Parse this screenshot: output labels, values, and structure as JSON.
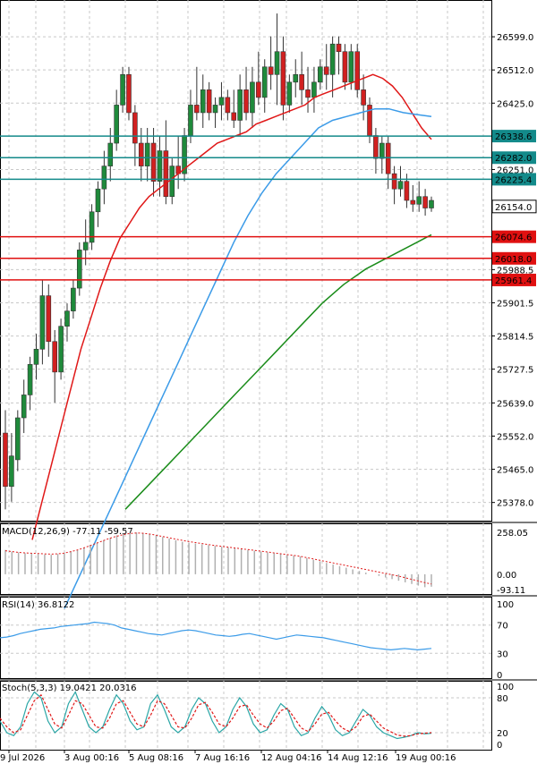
{
  "chart_data": {
    "type": "candlestick",
    "main": {
      "ylim": [
        25335,
        26686
      ],
      "y_ticks": [
        "26599.0",
        "26512.0",
        "26425.0",
        "26251.0",
        "25988.5",
        "25901.5",
        "25814.5",
        "25727.5",
        "25639.0",
        "25552.0",
        "25465.0",
        "25378.0"
      ],
      "y_tick_values": [
        26599.0,
        26512.0,
        26425.0,
        26251.0,
        25988.5,
        25901.5,
        25814.5,
        25727.5,
        25639.0,
        25552.0,
        25465.0,
        25378.0
      ],
      "hlines": [
        {
          "value": 26338.6,
          "label": "26338.6",
          "color": "#138a8a"
        },
        {
          "value": 26282.0,
          "label": "26282.0",
          "color": "#138a8a"
        },
        {
          "value": 26225.4,
          "label": "26225.4",
          "color": "#138a8a"
        },
        {
          "value": 26074.6,
          "label": "26074.6",
          "color": "#e01010"
        },
        {
          "value": 26018.0,
          "label": "26018.0",
          "color": "#e01010"
        },
        {
          "value": 25961.4,
          "label": "25961.4",
          "color": "#e01010"
        }
      ],
      "current_price": {
        "value": 26154.0,
        "label": "26154.0"
      },
      "candles": [
        [
          25560,
          25620,
          25360,
          25420
        ],
        [
          25420,
          25560,
          25380,
          25500
        ],
        [
          25490,
          25620,
          25460,
          25600
        ],
        [
          25600,
          25700,
          25560,
          25660
        ],
        [
          25660,
          25760,
          25620,
          25740
        ],
        [
          25740,
          25820,
          25700,
          25780
        ],
        [
          25780,
          25960,
          25740,
          25920
        ],
        [
          25920,
          25950,
          25760,
          25800
        ],
        [
          25800,
          25830,
          25640,
          25720
        ],
        [
          25720,
          25860,
          25700,
          25840
        ],
        [
          25840,
          25900,
          25800,
          25880
        ],
        [
          25880,
          25960,
          25860,
          25940
        ],
        [
          25940,
          26060,
          25920,
          26040
        ],
        [
          26040,
          26120,
          26000,
          26060
        ],
        [
          26060,
          26160,
          26040,
          26140
        ],
        [
          26140,
          26220,
          26100,
          26200
        ],
        [
          26200,
          26300,
          26160,
          26260
        ],
        [
          26260,
          26360,
          26220,
          26320
        ],
        [
          26320,
          26460,
          26300,
          26420
        ],
        [
          26420,
          26520,
          26400,
          26500
        ],
        [
          26500,
          26520,
          26380,
          26400
        ],
        [
          26400,
          26420,
          26260,
          26320
        ],
        [
          26320,
          26360,
          26220,
          26260
        ],
        [
          26260,
          26360,
          26220,
          26320
        ],
        [
          26320,
          26360,
          26180,
          26220
        ],
        [
          26220,
          26340,
          26180,
          26300
        ],
        [
          26300,
          26380,
          26160,
          26180
        ],
        [
          26180,
          26280,
          26160,
          26260
        ],
        [
          26260,
          26340,
          26200,
          26240
        ],
        [
          26240,
          26360,
          26220,
          26340
        ],
        [
          26340,
          26460,
          26320,
          26420
        ],
        [
          26420,
          26520,
          26380,
          26400
        ],
        [
          26400,
          26500,
          26360,
          26460
        ],
        [
          26460,
          26480,
          26380,
          26400
        ],
        [
          26400,
          26440,
          26360,
          26420
        ],
        [
          26420,
          26480,
          26380,
          26440
        ],
        [
          26440,
          26460,
          26380,
          26400
        ],
        [
          26400,
          26460,
          26360,
          26380
        ],
        [
          26380,
          26500,
          26340,
          26460
        ],
        [
          26460,
          26520,
          26380,
          26400
        ],
        [
          26400,
          26520,
          26360,
          26480
        ],
        [
          26480,
          26560,
          26420,
          26440
        ],
        [
          26440,
          26540,
          26400,
          26520
        ],
        [
          26520,
          26600,
          26460,
          26500
        ],
        [
          26500,
          26660,
          26420,
          26560
        ],
        [
          26560,
          26600,
          26380,
          26420
        ],
        [
          26420,
          26500,
          26400,
          26480
        ],
        [
          26480,
          26540,
          26440,
          26500
        ],
        [
          26500,
          26560,
          26420,
          26460
        ],
        [
          26460,
          26520,
          26400,
          26440
        ],
        [
          26440,
          26520,
          26400,
          26480
        ],
        [
          26480,
          26540,
          26460,
          26520
        ],
        [
          26520,
          26580,
          26460,
          26500
        ],
        [
          26500,
          26600,
          26440,
          26580
        ],
        [
          26580,
          26600,
          26500,
          26560
        ],
        [
          26560,
          26580,
          26460,
          26480
        ],
        [
          26480,
          26580,
          26460,
          26560
        ],
        [
          26560,
          26580,
          26440,
          26460
        ],
        [
          26460,
          26500,
          26380,
          26420
        ],
        [
          26420,
          26440,
          26320,
          26340
        ],
        [
          26340,
          26360,
          26240,
          26280
        ],
        [
          26280,
          26340,
          26240,
          26320
        ],
        [
          26320,
          26340,
          26200,
          26240
        ],
        [
          26240,
          26260,
          26160,
          26200
        ],
        [
          26200,
          26260,
          26180,
          26220
        ],
        [
          26220,
          26240,
          26150,
          26170
        ],
        [
          26170,
          26210,
          26140,
          26160
        ],
        [
          26160,
          26220,
          26140,
          26180
        ],
        [
          26180,
          26200,
          26130,
          26150
        ],
        [
          26150,
          26180,
          26140,
          26170
        ]
      ],
      "ma_red": [
        25280,
        25380,
        25480,
        25580,
        25680,
        25780,
        25860,
        25940,
        26010,
        26070,
        26110,
        26150,
        26180,
        26200,
        26220,
        26240,
        26260,
        26280,
        26300,
        26320,
        26330,
        26340,
        26350,
        26370,
        26380,
        26390,
        26400,
        26410,
        26420,
        26440,
        26450,
        26460,
        26470,
        26480,
        26490,
        26500,
        26490,
        26470,
        26440,
        26400,
        26360,
        26330
      ],
      "ma_blue": [
        25100,
        25180,
        25260,
        25340,
        25420,
        25500,
        25580,
        25660,
        25740,
        25820,
        25900,
        25980,
        26060,
        26130,
        26190,
        26240,
        26280,
        26320,
        26360,
        26380,
        26390,
        26400,
        26410,
        26410,
        26400,
        26395,
        26390
      ],
      "ma_green": [
        25360,
        25420,
        25480,
        25540,
        25600,
        25660,
        25720,
        25780,
        25840,
        25900,
        25950,
        25990,
        26020,
        26050,
        26080
      ]
    },
    "macd": {
      "title": "MACD(12,26,9) -77.11 -59.57",
      "y_ticks": [
        "258.05",
        "0.00",
        "-93.11"
      ],
      "ylim": [
        -100,
        270
      ],
      "histogram": [
        150,
        140,
        135,
        130,
        128,
        125,
        122,
        120,
        125,
        130,
        140,
        150,
        165,
        180,
        195,
        210,
        225,
        240,
        250,
        255,
        258,
        255,
        250,
        240,
        230,
        220,
        210,
        200,
        195,
        190,
        185,
        180,
        175,
        170,
        165,
        160,
        155,
        150,
        145,
        140,
        135,
        130,
        125,
        120,
        115,
        110,
        100,
        90,
        80,
        70,
        60,
        50,
        40,
        30,
        20,
        10,
        0,
        -10,
        -20,
        -30,
        -40,
        -50,
        -60,
        -70,
        -80,
        -77
      ],
      "signal": [
        145,
        140,
        135,
        132,
        130,
        128,
        126,
        124,
        126,
        130,
        138,
        148,
        160,
        175,
        190,
        205,
        220,
        232,
        242,
        250,
        254,
        254,
        250,
        244,
        236,
        228,
        220,
        212,
        205,
        198,
        192,
        186,
        180,
        175,
        170,
        165,
        160,
        155,
        150,
        145,
        140,
        135,
        130,
        125,
        120,
        115,
        108,
        100,
        92,
        84,
        76,
        68,
        60,
        52,
        44,
        36,
        28,
        20,
        12,
        4,
        -4,
        -12,
        -22,
        -32,
        -42,
        -52,
        -60
      ]
    },
    "rsi": {
      "title": "RSI(14) 36.8122",
      "y_ticks": [
        "100",
        "70",
        "30",
        "0"
      ],
      "ylim": [
        0,
        100
      ],
      "values": [
        52,
        53,
        55,
        58,
        60,
        62,
        64,
        65,
        66,
        68,
        69,
        70,
        71,
        72,
        74,
        73,
        72,
        70,
        66,
        64,
        62,
        60,
        58,
        57,
        56,
        58,
        60,
        62,
        63,
        62,
        60,
        58,
        56,
        55,
        54,
        55,
        57,
        58,
        56,
        54,
        52,
        50,
        52,
        54,
        56,
        55,
        54,
        53,
        52,
        50,
        48,
        46,
        44,
        42,
        40,
        38,
        37,
        36,
        35,
        36,
        37,
        36,
        35,
        36,
        37
      ]
    },
    "stoch": {
      "title": "Stoch(5,3,3) 19.0421 20.0316",
      "y_ticks": [
        "100",
        "80",
        "20",
        "0"
      ],
      "ylim": [
        0,
        100
      ],
      "k": [
        40,
        20,
        15,
        30,
        70,
        90,
        80,
        40,
        20,
        30,
        70,
        90,
        60,
        30,
        20,
        30,
        60,
        85,
        70,
        40,
        25,
        30,
        70,
        85,
        60,
        30,
        20,
        30,
        60,
        80,
        70,
        40,
        20,
        30,
        60,
        80,
        65,
        35,
        20,
        25,
        50,
        70,
        60,
        30,
        15,
        20,
        45,
        65,
        50,
        25,
        15,
        20,
        40,
        60,
        50,
        30,
        20,
        15,
        10,
        12,
        15,
        20,
        18,
        19
      ],
      "d": [
        45,
        30,
        20,
        25,
        50,
        75,
        85,
        60,
        35,
        28,
        50,
        75,
        70,
        50,
        30,
        28,
        45,
        70,
        75,
        55,
        35,
        30,
        50,
        75,
        70,
        50,
        30,
        28,
        45,
        68,
        72,
        55,
        35,
        30,
        45,
        65,
        68,
        50,
        35,
        28,
        40,
        58,
        62,
        45,
        28,
        22,
        35,
        52,
        55,
        40,
        28,
        22,
        30,
        48,
        52,
        40,
        28,
        22,
        16,
        14,
        15,
        18,
        19,
        20
      ]
    },
    "x_tick_labels": [
      "9 Jul 2026",
      "3 Aug 00:16",
      "5 Aug 08:16",
      "7 Aug 16:16",
      "12 Aug 04:16",
      "14 Aug 12:16",
      "19 Aug 00:16"
    ]
  }
}
